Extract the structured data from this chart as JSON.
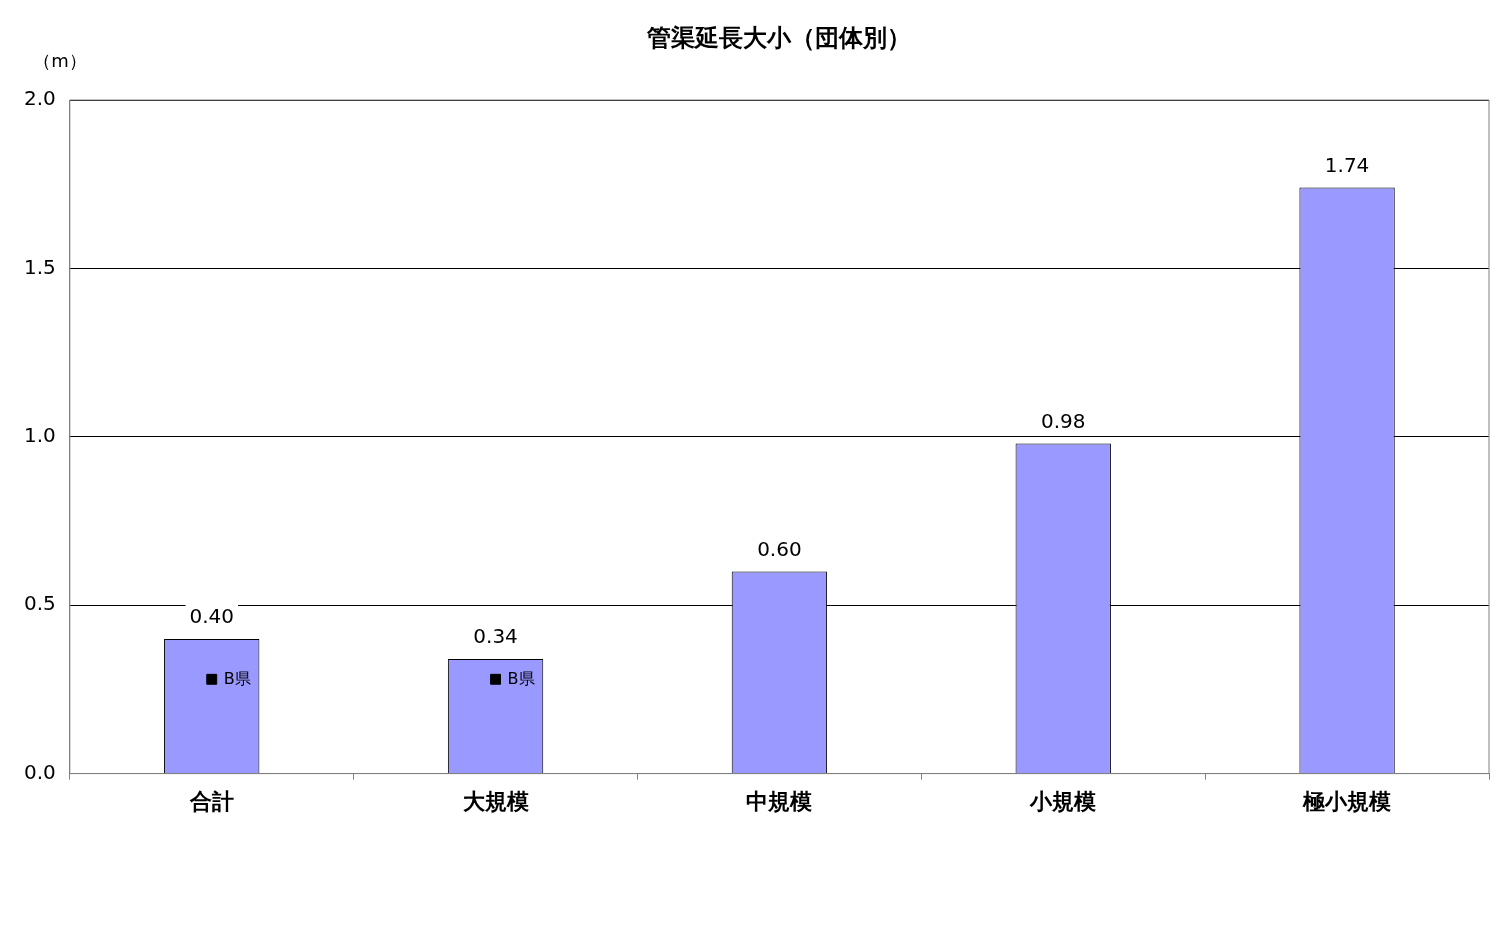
{
  "chart_data": {
    "type": "bar",
    "title": "管渠延長大小（団体別）",
    "ylabel": "（m）",
    "categories": [
      "合計",
      "大規模",
      "中規模",
      "小規模",
      "極小規模"
    ],
    "series": [
      {
        "color": "#9999ff",
        "values": [
          0.4,
          0.34,
          0.6,
          0.98,
          1.74
        ],
        "value_labels": [
          "0.40",
          "0.34",
          "0.60",
          "0.98",
          "1.74"
        ]
      },
      {
        "type": "scatter",
        "name": "B県",
        "color": "#000000",
        "marker": "square",
        "x": [
          "合計",
          "大規模"
        ],
        "values": [
          0.28,
          0.28
        ]
      }
    ],
    "ylim": [
      0,
      2
    ],
    "yticks": [
      {
        "value": 0,
        "label": "0.0"
      },
      {
        "value": 0.5,
        "label": "0.5"
      },
      {
        "value": 1,
        "label": "1.0"
      },
      {
        "value": 1.5,
        "label": "1.5"
      },
      {
        "value": 2,
        "label": "2.0"
      }
    ],
    "grid": "y",
    "legend": false
  }
}
